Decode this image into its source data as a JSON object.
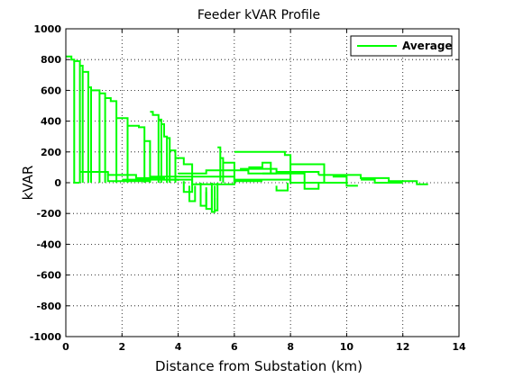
{
  "chart_data": {
    "type": "line",
    "title": "Feeder kVAR Profile",
    "xlabel": "Distance from Substation (km)",
    "ylabel": "kVAR",
    "xlim": [
      0,
      14
    ],
    "ylim": [
      -1000,
      1000
    ],
    "x_ticks": [
      "0",
      "2",
      "4",
      "6",
      "8",
      "10",
      "12",
      "14"
    ],
    "y_ticks": [
      "1000",
      "800",
      "600",
      "400",
      "200",
      "0",
      "-200",
      "-400",
      "-600",
      "-800",
      "-1000"
    ],
    "grid": true,
    "legend_position": "top-right",
    "series": [
      {
        "name": "Average",
        "color": "#00ff00",
        "segments": [
          [
            [
              0,
              820
            ],
            [
              0.2,
              820
            ],
            [
              0.2,
              800
            ],
            [
              0.3,
              800
            ],
            [
              0.3,
              790
            ],
            [
              0.5,
              790
            ],
            [
              0.5,
              0
            ]
          ],
          [
            [
              0.3,
              790
            ],
            [
              0.3,
              0
            ],
            [
              0.5,
              0
            ]
          ],
          [
            [
              0.5,
              760
            ],
            [
              0.6,
              760
            ],
            [
              0.6,
              0
            ]
          ],
          [
            [
              0.6,
              720
            ],
            [
              0.8,
              720
            ],
            [
              0.8,
              0
            ]
          ],
          [
            [
              0.8,
              620
            ],
            [
              0.9,
              620
            ],
            [
              0.9,
              0
            ]
          ],
          [
            [
              0.9,
              600
            ],
            [
              1.2,
              600
            ],
            [
              1.2,
              580
            ],
            [
              1.4,
              580
            ],
            [
              1.4,
              550
            ],
            [
              1.6,
              550
            ],
            [
              1.6,
              530
            ],
            [
              1.8,
              530
            ],
            [
              1.8,
              0
            ]
          ],
          [
            [
              1.2,
              580
            ],
            [
              1.2,
              0
            ]
          ],
          [
            [
              1.4,
              550
            ],
            [
              1.4,
              0
            ]
          ],
          [
            [
              1.8,
              420
            ],
            [
              2.2,
              420
            ],
            [
              2.2,
              0
            ]
          ],
          [
            [
              2.2,
              370
            ],
            [
              2.6,
              370
            ],
            [
              2.6,
              360
            ],
            [
              2.8,
              360
            ],
            [
              2.8,
              0
            ]
          ],
          [
            [
              2.8,
              270
            ],
            [
              3.0,
              270
            ],
            [
              3.0,
              0
            ]
          ],
          [
            [
              3.0,
              460
            ],
            [
              3.1,
              460
            ],
            [
              3.1,
              440
            ],
            [
              3.3,
              440
            ],
            [
              3.3,
              0
            ]
          ],
          [
            [
              3.3,
              410
            ],
            [
              3.4,
              410
            ],
            [
              3.4,
              0
            ]
          ],
          [
            [
              3.4,
              380
            ],
            [
              3.5,
              380
            ],
            [
              3.5,
              300
            ],
            [
              3.6,
              300
            ],
            [
              3.6,
              0
            ]
          ],
          [
            [
              3.6,
              290
            ],
            [
              3.7,
              290
            ],
            [
              3.7,
              0
            ]
          ],
          [
            [
              3.7,
              210
            ],
            [
              3.9,
              210
            ],
            [
              3.9,
              0
            ]
          ],
          [
            [
              0.5,
              70
            ],
            [
              1.5,
              70
            ],
            [
              1.5,
              50
            ],
            [
              2.5,
              50
            ],
            [
              2.5,
              30
            ],
            [
              3.5,
              30
            ],
            [
              3.5,
              20
            ],
            [
              4.0,
              20
            ]
          ],
          [
            [
              1.5,
              70
            ],
            [
              1.5,
              10
            ],
            [
              3.0,
              10
            ]
          ],
          [
            [
              3.9,
              160
            ],
            [
              4.2,
              160
            ],
            [
              4.2,
              120
            ],
            [
              4.5,
              120
            ],
            [
              4.5,
              0
            ]
          ],
          [
            [
              4.2,
              10
            ],
            [
              4.2,
              -60
            ],
            [
              4.5,
              -60
            ],
            [
              4.5,
              0
            ]
          ],
          [
            [
              4.4,
              -20
            ],
            [
              4.4,
              -120
            ],
            [
              4.6,
              -120
            ],
            [
              4.6,
              -20
            ]
          ],
          [
            [
              4.8,
              0
            ],
            [
              4.8,
              -150
            ],
            [
              5.0,
              -150
            ],
            [
              5.0,
              -60
            ]
          ],
          [
            [
              5.0,
              -30
            ],
            [
              5.0,
              -170
            ],
            [
              5.2,
              -170
            ],
            [
              5.2,
              -40
            ]
          ],
          [
            [
              5.2,
              0
            ],
            [
              5.2,
              -190
            ],
            [
              5.3,
              -190
            ],
            [
              5.3,
              -100
            ]
          ],
          [
            [
              5.3,
              -20
            ],
            [
              5.3,
              -180
            ],
            [
              5.4,
              -180
            ],
            [
              5.4,
              0
            ]
          ],
          [
            [
              5.4,
              230
            ],
            [
              5.5,
              230
            ],
            [
              5.5,
              10
            ]
          ],
          [
            [
              5.5,
              160
            ],
            [
              5.6,
              160
            ],
            [
              5.6,
              0
            ]
          ],
          [
            [
              5.6,
              130
            ],
            [
              6.0,
              130
            ],
            [
              6.0,
              0
            ]
          ],
          [
            [
              6.0,
              200
            ],
            [
              7.8,
              200
            ],
            [
              7.8,
              180
            ],
            [
              8.0,
              180
            ],
            [
              8.0,
              0
            ]
          ],
          [
            [
              6.2,
              90
            ],
            [
              7.5,
              90
            ],
            [
              7.5,
              70
            ],
            [
              9.0,
              70
            ],
            [
              9.0,
              50
            ]
          ],
          [
            [
              8.0,
              120
            ],
            [
              9.2,
              120
            ],
            [
              9.2,
              0
            ]
          ],
          [
            [
              7.0,
              60
            ],
            [
              8.5,
              60
            ],
            [
              8.5,
              -40
            ],
            [
              9.0,
              -40
            ],
            [
              9.0,
              0
            ]
          ],
          [
            [
              7.5,
              -20
            ],
            [
              7.5,
              -50
            ],
            [
              7.9,
              -50
            ],
            [
              7.9,
              0
            ]
          ],
          [
            [
              9.0,
              50
            ],
            [
              10.5,
              50
            ],
            [
              10.5,
              30
            ],
            [
              11.5,
              30
            ],
            [
              11.5,
              10
            ],
            [
              12.5,
              10
            ],
            [
              12.5,
              -10
            ],
            [
              12.9,
              -10
            ]
          ],
          [
            [
              9.5,
              40
            ],
            [
              10.0,
              40
            ],
            [
              10.0,
              -20
            ],
            [
              10.4,
              -20
            ]
          ],
          [
            [
              10.5,
              20
            ],
            [
              11.0,
              20
            ],
            [
              11.0,
              0
            ],
            [
              12.0,
              0
            ]
          ],
          [
            [
              3.0,
              40
            ],
            [
              6.0,
              40
            ],
            [
              6.0,
              20
            ],
            [
              8.0,
              20
            ],
            [
              8.0,
              0
            ],
            [
              10.0,
              0
            ]
          ],
          [
            [
              4.0,
              60
            ],
            [
              5.0,
              60
            ],
            [
              5.0,
              80
            ],
            [
              6.5,
              80
            ],
            [
              6.5,
              60
            ],
            [
              7.5,
              60
            ]
          ],
          [
            [
              2.0,
              20
            ],
            [
              4.5,
              20
            ],
            [
              4.5,
              -10
            ],
            [
              6.0,
              -10
            ],
            [
              6.0,
              10
            ],
            [
              7.0,
              10
            ]
          ],
          [
            [
              6.5,
              100
            ],
            [
              7.0,
              100
            ],
            [
              7.0,
              130
            ],
            [
              7.3,
              130
            ],
            [
              7.3,
              60
            ]
          ]
        ]
      }
    ]
  }
}
